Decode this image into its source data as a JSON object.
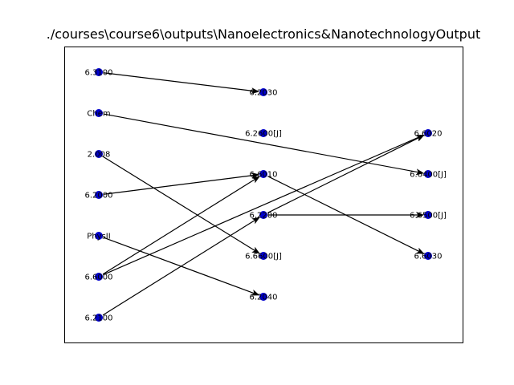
{
  "title": "./courses\\course6\\outputs\\Nanoelectronics&NanotechnologyOutput",
  "colors": {
    "node": "#0000cc",
    "edge": "#000000",
    "frame": "#000000",
    "background": "#ffffff"
  },
  "nodes": [
    {
      "id": "6.3100",
      "label": "6.3100",
      "column": 0,
      "row": 0
    },
    {
      "id": "Chem",
      "label": "Chem",
      "column": 0,
      "row": 1
    },
    {
      "id": "2.008",
      "label": "2.008",
      "column": 0,
      "row": 2
    },
    {
      "id": "6.2000",
      "label": "6.2000",
      "column": 0,
      "row": 3
    },
    {
      "id": "PhysII",
      "label": "PhysII",
      "column": 0,
      "row": 4
    },
    {
      "id": "6.6000",
      "label": "6.6000",
      "column": 0,
      "row": 5
    },
    {
      "id": "6.2100",
      "label": "6.2100",
      "column": 0,
      "row": 6
    },
    {
      "id": "6.2030",
      "label": "6.2030",
      "column": 1,
      "row": 0
    },
    {
      "id": "6.2600[J]",
      "label": "6.2600[J]",
      "column": 1,
      "row": 1
    },
    {
      "id": "6.6010",
      "label": "6.6010",
      "column": 1,
      "row": 2
    },
    {
      "id": "6.2200",
      "label": "6.2200",
      "column": 1,
      "row": 3
    },
    {
      "id": "6.6600[J]",
      "label": "6.6600[J]",
      "column": 1,
      "row": 4
    },
    {
      "id": "6.2040",
      "label": "6.2040",
      "column": 1,
      "row": 5
    },
    {
      "id": "6.6020",
      "label": "6.6020",
      "column": 2,
      "row": 0
    },
    {
      "id": "6.6400[J]",
      "label": "6.6400[J]",
      "column": 2,
      "row": 1
    },
    {
      "id": "6.6500[J]",
      "label": "6.6500[J]",
      "column": 2,
      "row": 2
    },
    {
      "id": "6.6030",
      "label": "6.6030",
      "column": 2,
      "row": 3
    }
  ],
  "edges": [
    {
      "from": "6.3100",
      "to": "6.2030"
    },
    {
      "from": "Chem",
      "to": "6.6400[J]"
    },
    {
      "from": "2.008",
      "to": "6.6600[J]"
    },
    {
      "from": "6.2000",
      "to": "6.6010"
    },
    {
      "from": "PhysII",
      "to": "6.2040"
    },
    {
      "from": "6.6000",
      "to": "6.6010"
    },
    {
      "from": "6.6000",
      "to": "6.6020"
    },
    {
      "from": "6.2100",
      "to": "6.2200"
    },
    {
      "from": "6.2200",
      "to": "6.6020"
    },
    {
      "from": "6.6010",
      "to": "6.6030"
    },
    {
      "from": "6.2200",
      "to": "6.6500[J]"
    }
  ]
}
